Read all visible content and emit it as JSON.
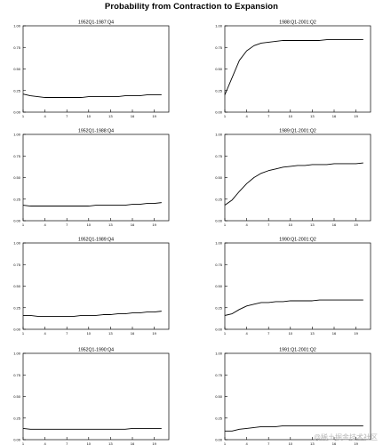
{
  "title": "Probability from Contraction to Expansion",
  "watermark": "@稀土掘金技术社区",
  "y_ticks": [
    "0.00",
    "0.25",
    "0.50",
    "0.75",
    "1.00"
  ],
  "x_ticks": [
    "1",
    "4",
    "7",
    "10",
    "13",
    "16",
    "19"
  ],
  "chart_data": [
    {
      "type": "line",
      "title": "1952Q1-1987:Q4",
      "ylim": [
        0,
        1
      ],
      "xlim": [
        1,
        21
      ],
      "x": [
        1,
        2,
        3,
        4,
        5,
        6,
        7,
        8,
        9,
        10,
        11,
        12,
        13,
        14,
        15,
        16,
        17,
        18,
        19,
        20
      ],
      "values": [
        0.21,
        0.19,
        0.18,
        0.17,
        0.17,
        0.17,
        0.17,
        0.17,
        0.17,
        0.18,
        0.18,
        0.18,
        0.18,
        0.18,
        0.19,
        0.19,
        0.19,
        0.2,
        0.2,
        0.2
      ]
    },
    {
      "type": "line",
      "title": "1988:Q1-2001:Q2",
      "ylim": [
        0,
        1
      ],
      "xlim": [
        1,
        21
      ],
      "x": [
        1,
        2,
        3,
        4,
        5,
        6,
        7,
        8,
        9,
        10,
        11,
        12,
        13,
        14,
        15,
        16,
        17,
        18,
        19,
        20
      ],
      "values": [
        0.2,
        0.4,
        0.6,
        0.71,
        0.77,
        0.8,
        0.81,
        0.82,
        0.83,
        0.83,
        0.83,
        0.83,
        0.83,
        0.83,
        0.84,
        0.84,
        0.84,
        0.84,
        0.84,
        0.84
      ]
    },
    {
      "type": "line",
      "title": "1952Q1-1988:Q4",
      "ylim": [
        0,
        1
      ],
      "xlim": [
        1,
        21
      ],
      "x": [
        1,
        2,
        3,
        4,
        5,
        6,
        7,
        8,
        9,
        10,
        11,
        12,
        13,
        14,
        15,
        16,
        17,
        18,
        19,
        20
      ],
      "values": [
        0.18,
        0.17,
        0.17,
        0.17,
        0.17,
        0.17,
        0.17,
        0.17,
        0.17,
        0.17,
        0.18,
        0.18,
        0.18,
        0.18,
        0.18,
        0.19,
        0.19,
        0.2,
        0.2,
        0.21
      ]
    },
    {
      "type": "line",
      "title": "1989:Q1-2001:Q2",
      "ylim": [
        0,
        1
      ],
      "xlim": [
        1,
        21
      ],
      "x": [
        1,
        2,
        3,
        4,
        5,
        6,
        7,
        8,
        9,
        10,
        11,
        12,
        13,
        14,
        15,
        16,
        17,
        18,
        19,
        20
      ],
      "values": [
        0.18,
        0.24,
        0.34,
        0.43,
        0.5,
        0.55,
        0.58,
        0.6,
        0.62,
        0.63,
        0.64,
        0.64,
        0.65,
        0.65,
        0.65,
        0.66,
        0.66,
        0.66,
        0.66,
        0.67
      ]
    },
    {
      "type": "line",
      "title": "1952Q1-1989:Q4",
      "ylim": [
        0,
        1
      ],
      "xlim": [
        1,
        21
      ],
      "x": [
        1,
        2,
        3,
        4,
        5,
        6,
        7,
        8,
        9,
        10,
        11,
        12,
        13,
        14,
        15,
        16,
        17,
        18,
        19,
        20
      ],
      "values": [
        0.16,
        0.16,
        0.15,
        0.15,
        0.15,
        0.15,
        0.15,
        0.15,
        0.16,
        0.16,
        0.16,
        0.17,
        0.17,
        0.18,
        0.18,
        0.19,
        0.19,
        0.2,
        0.2,
        0.21
      ]
    },
    {
      "type": "line",
      "title": "1990:Q1-2001:Q2",
      "ylim": [
        0,
        1
      ],
      "xlim": [
        1,
        21
      ],
      "x": [
        1,
        2,
        3,
        4,
        5,
        6,
        7,
        8,
        9,
        10,
        11,
        12,
        13,
        14,
        15,
        16,
        17,
        18,
        19,
        20
      ],
      "values": [
        0.16,
        0.18,
        0.23,
        0.27,
        0.29,
        0.31,
        0.31,
        0.32,
        0.32,
        0.33,
        0.33,
        0.33,
        0.33,
        0.34,
        0.34,
        0.34,
        0.34,
        0.34,
        0.34,
        0.34
      ]
    },
    {
      "type": "line",
      "title": "1952Q1-1990:Q4",
      "ylim": [
        0,
        1
      ],
      "xlim": [
        1,
        21
      ],
      "x": [
        1,
        2,
        3,
        4,
        5,
        6,
        7,
        8,
        9,
        10,
        11,
        12,
        13,
        14,
        15,
        16,
        17,
        18,
        19,
        20
      ],
      "values": [
        0.13,
        0.12,
        0.12,
        0.12,
        0.12,
        0.12,
        0.12,
        0.12,
        0.12,
        0.12,
        0.12,
        0.12,
        0.12,
        0.12,
        0.12,
        0.13,
        0.13,
        0.13,
        0.13,
        0.13
      ]
    },
    {
      "type": "line",
      "title": "1991:Q1-2001:Q2",
      "ylim": [
        0,
        1
      ],
      "xlim": [
        1,
        21
      ],
      "x": [
        1,
        2,
        3,
        4,
        5,
        6,
        7,
        8,
        9,
        10,
        11,
        12,
        13,
        14,
        15,
        16,
        17,
        18,
        19,
        20
      ],
      "values": [
        0.1,
        0.1,
        0.12,
        0.13,
        0.14,
        0.15,
        0.15,
        0.15,
        0.16,
        0.16,
        0.16,
        0.16,
        0.16,
        0.16,
        0.16,
        0.16,
        0.16,
        0.16,
        0.16,
        0.16
      ]
    }
  ]
}
